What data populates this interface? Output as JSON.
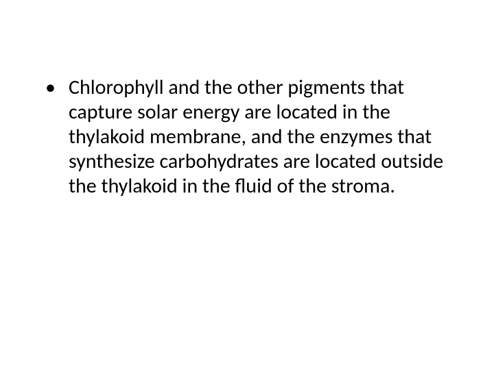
{
  "slide": {
    "bullets": [
      {
        "text": "Chlorophyll and the other pigments that capture solar energy are located in the thylakoid membrane, and the enzymes that synthesize carbohydrates are located outside the thylakoid in the fluid of the stroma."
      }
    ],
    "text_color": "#000000",
    "background_color": "#ffffff",
    "font_size": 30
  }
}
